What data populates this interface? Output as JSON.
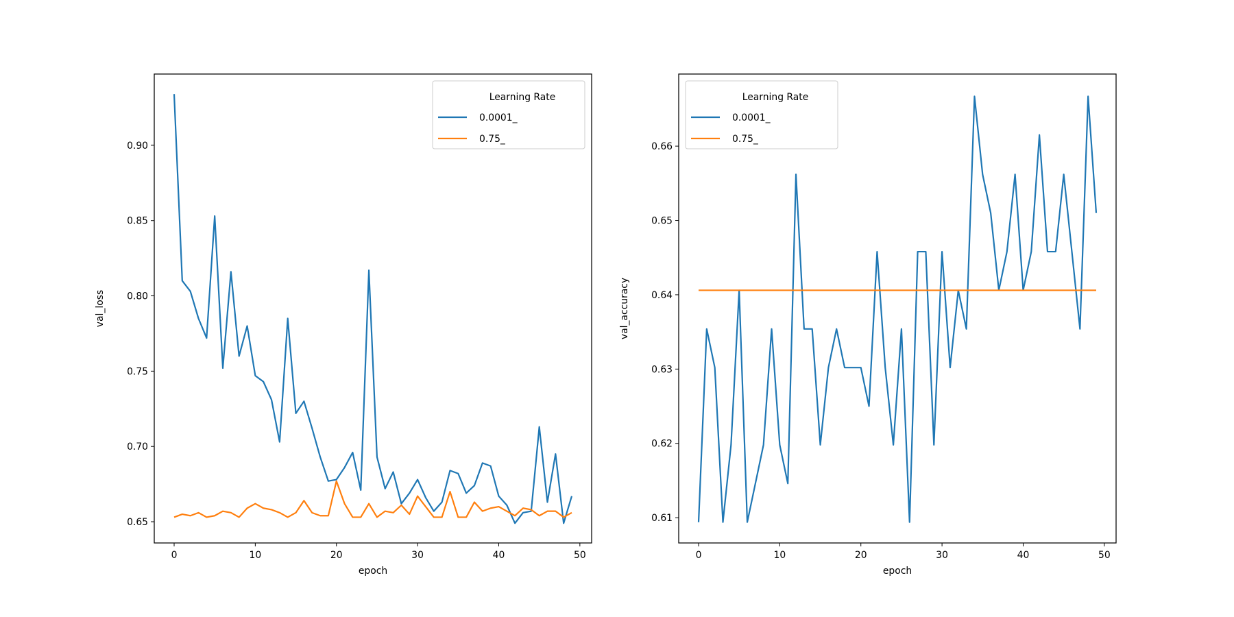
{
  "chart_data": [
    {
      "type": "line",
      "title": "",
      "xlabel": "epoch",
      "ylabel": "val_loss",
      "xlim": [
        -2.45,
        51.45
      ],
      "ylim": [
        0.6359,
        0.9473
      ],
      "xticks": [
        0,
        10,
        20,
        30,
        40,
        50
      ],
      "yticks": [
        0.65,
        0.7,
        0.75,
        0.8,
        0.85,
        0.9
      ],
      "ytick_labels": [
        "0.65",
        "0.70",
        "0.75",
        "0.80",
        "0.85",
        "0.90"
      ],
      "xtick_labels": [
        "0",
        "10",
        "20",
        "30",
        "40",
        "50"
      ],
      "legend": {
        "title": "Learning Rate",
        "position": "upper right"
      },
      "series": [
        {
          "name": "0.0001_",
          "color": "#1f77b4",
          "x": [
            0,
            1,
            2,
            3,
            4,
            5,
            6,
            7,
            8,
            9,
            10,
            11,
            12,
            13,
            14,
            15,
            16,
            17,
            18,
            19,
            20,
            21,
            22,
            23,
            24,
            25,
            26,
            27,
            28,
            29,
            30,
            31,
            32,
            33,
            34,
            35,
            36,
            37,
            38,
            39,
            40,
            41,
            42,
            43,
            44,
            45,
            46,
            47,
            48,
            49
          ],
          "values": [
            0.934,
            0.81,
            0.803,
            0.785,
            0.772,
            0.853,
            0.752,
            0.816,
            0.76,
            0.78,
            0.747,
            0.743,
            0.731,
            0.703,
            0.785,
            0.722,
            0.73,
            0.712,
            0.693,
            0.677,
            0.678,
            0.686,
            0.696,
            0.671,
            0.817,
            0.693,
            0.672,
            0.683,
            0.662,
            0.669,
            0.678,
            0.666,
            0.657,
            0.663,
            0.684,
            0.682,
            0.669,
            0.674,
            0.689,
            0.687,
            0.667,
            0.661,
            0.649,
            0.656,
            0.657,
            0.713,
            0.663,
            0.695,
            0.649,
            0.667
          ]
        },
        {
          "name": "0.75_",
          "color": "#ff7f0e",
          "x": [
            0,
            1,
            2,
            3,
            4,
            5,
            6,
            7,
            8,
            9,
            10,
            11,
            12,
            13,
            14,
            15,
            16,
            17,
            18,
            19,
            20,
            21,
            22,
            23,
            24,
            25,
            26,
            27,
            28,
            29,
            30,
            31,
            32,
            33,
            34,
            35,
            36,
            37,
            38,
            39,
            40,
            41,
            42,
            43,
            44,
            45,
            46,
            47,
            48,
            49
          ],
          "values": [
            0.653,
            0.655,
            0.654,
            0.656,
            0.653,
            0.654,
            0.657,
            0.656,
            0.653,
            0.659,
            0.662,
            0.659,
            0.658,
            0.656,
            0.653,
            0.656,
            0.664,
            0.656,
            0.654,
            0.654,
            0.677,
            0.662,
            0.653,
            0.653,
            0.662,
            0.653,
            0.657,
            0.656,
            0.661,
            0.655,
            0.667,
            0.66,
            0.653,
            0.653,
            0.67,
            0.653,
            0.653,
            0.663,
            0.657,
            0.659,
            0.66,
            0.657,
            0.654,
            0.659,
            0.658,
            0.654,
            0.657,
            0.657,
            0.653,
            0.656
          ]
        }
      ]
    },
    {
      "type": "line",
      "title": "",
      "xlabel": "epoch",
      "ylabel": "val_accuracy",
      "xlim": [
        -2.45,
        51.45
      ],
      "ylim": [
        0.6066,
        0.6697
      ],
      "xticks": [
        0,
        10,
        20,
        30,
        40,
        50
      ],
      "yticks": [
        0.61,
        0.62,
        0.63,
        0.64,
        0.65,
        0.66
      ],
      "ytick_labels": [
        "0.61",
        "0.62",
        "0.63",
        "0.64",
        "0.65",
        "0.66"
      ],
      "xtick_labels": [
        "0",
        "10",
        "20",
        "30",
        "40",
        "50"
      ],
      "legend": {
        "title": "Learning Rate",
        "position": "upper left"
      },
      "series": [
        {
          "name": "0.0001_",
          "color": "#1f77b4",
          "x": [
            0,
            1,
            2,
            3,
            4,
            5,
            6,
            7,
            8,
            9,
            10,
            11,
            12,
            13,
            14,
            15,
            16,
            17,
            18,
            19,
            20,
            21,
            22,
            23,
            24,
            25,
            26,
            27,
            28,
            29,
            30,
            31,
            32,
            33,
            34,
            35,
            36,
            37,
            38,
            39,
            40,
            41,
            42,
            43,
            44,
            45,
            46,
            47,
            48,
            49
          ],
          "values": [
            0.6094,
            0.6354,
            0.6302,
            0.6094,
            0.6198,
            0.6406,
            0.6094,
            0.6146,
            0.6198,
            0.6354,
            0.6198,
            0.6146,
            0.6562,
            0.6354,
            0.6354,
            0.6198,
            0.6302,
            0.6354,
            0.6302,
            0.6302,
            0.6302,
            0.625,
            0.6458,
            0.6302,
            0.6198,
            0.6354,
            0.6094,
            0.6458,
            0.6458,
            0.6198,
            0.6458,
            0.6302,
            0.6406,
            0.6354,
            0.6667,
            0.6562,
            0.651,
            0.6406,
            0.6458,
            0.6562,
            0.6406,
            0.6458,
            0.6615,
            0.6458,
            0.6458,
            0.6562,
            0.6458,
            0.6354,
            0.6667,
            0.651
          ]
        },
        {
          "name": "0.75_",
          "color": "#ff7f0e",
          "x": [
            0,
            1,
            2,
            3,
            4,
            5,
            6,
            7,
            8,
            9,
            10,
            11,
            12,
            13,
            14,
            15,
            16,
            17,
            18,
            19,
            20,
            21,
            22,
            23,
            24,
            25,
            26,
            27,
            28,
            29,
            30,
            31,
            32,
            33,
            34,
            35,
            36,
            37,
            38,
            39,
            40,
            41,
            42,
            43,
            44,
            45,
            46,
            47,
            48,
            49
          ],
          "values": [
            0.6406,
            0.6406,
            0.6406,
            0.6406,
            0.6406,
            0.6406,
            0.6406,
            0.6406,
            0.6406,
            0.6406,
            0.6406,
            0.6406,
            0.6406,
            0.6406,
            0.6406,
            0.6406,
            0.6406,
            0.6406,
            0.6406,
            0.6406,
            0.6406,
            0.6406,
            0.6406,
            0.6406,
            0.6406,
            0.6406,
            0.6406,
            0.6406,
            0.6406,
            0.6406,
            0.6406,
            0.6406,
            0.6406,
            0.6406,
            0.6406,
            0.6406,
            0.6406,
            0.6406,
            0.6406,
            0.6406,
            0.6406,
            0.6406,
            0.6406,
            0.6406,
            0.6406,
            0.6406,
            0.6406,
            0.6406,
            0.6406,
            0.6406
          ]
        }
      ]
    }
  ]
}
